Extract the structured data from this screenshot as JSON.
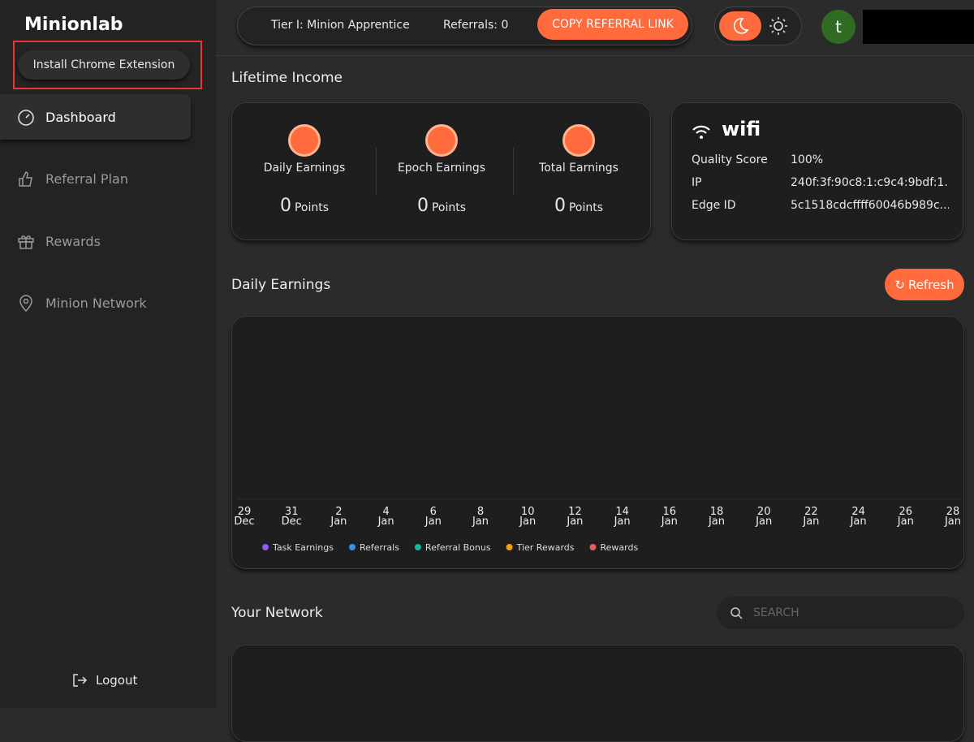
{
  "sidebar": {
    "logo": "Minionlab",
    "install_button": "Install Chrome Extension",
    "nav": [
      "Dashboard",
      "Referral Plan",
      "Rewards",
      "Minion Network"
    ],
    "logout": "Logout"
  },
  "header": {
    "tier": "Tier I: Minion Apprentice",
    "referrals": "Referrals: 0",
    "copy_button": "COPY REFERRAL LINK",
    "avatar": "t"
  },
  "lifetime_income": {
    "title": "Lifetime Income",
    "cards": [
      {
        "label": "Daily Earnings",
        "value": 0,
        "unit": "Points"
      },
      {
        "label": "Epoch Earnings",
        "value": 0,
        "unit": "Points"
      },
      {
        "label": "Total Earnings",
        "value": 0,
        "unit": "Points"
      }
    ]
  },
  "device": {
    "name": "wifi",
    "rows": [
      [
        "Quality Score",
        "100%"
      ],
      [
        "IP",
        "240f:3f:90c8:1:c9c4:9bdf:1..."
      ],
      [
        "Edge ID",
        "5c1518cdcffff60046b989c..."
      ]
    ]
  },
  "daily_earnings": {
    "title": "Daily Earnings",
    "refresh": "Refresh",
    "x_labels": [
      {
        "day": "29",
        "month": "Dec"
      },
      {
        "day": "31",
        "month": "Dec"
      },
      {
        "day": "2",
        "month": "Jan"
      },
      {
        "day": "4",
        "month": "Jan"
      },
      {
        "day": "6",
        "month": "Jan"
      },
      {
        "day": "8",
        "month": "Jan"
      },
      {
        "day": "10",
        "month": "Jan"
      },
      {
        "day": "12",
        "month": "Jan"
      },
      {
        "day": "14",
        "month": "Jan"
      },
      {
        "day": "16",
        "month": "Jan"
      },
      {
        "day": "18",
        "month": "Jan"
      },
      {
        "day": "20",
        "month": "Jan"
      },
      {
        "day": "22",
        "month": "Jan"
      },
      {
        "day": "24",
        "month": "Jan"
      },
      {
        "day": "26",
        "month": "Jan"
      },
      {
        "day": "28",
        "month": "Jan"
      }
    ],
    "legend": [
      {
        "name": "Task Earnings",
        "color": "#8b5cf6"
      },
      {
        "name": "Referrals",
        "color": "#3b8fe8"
      },
      {
        "name": "Referral Bonus",
        "color": "#14b8a6"
      },
      {
        "name": "Tier Rewards",
        "color": "#f59e0b"
      },
      {
        "name": "Rewards",
        "color": "#ef5b5b"
      }
    ]
  },
  "network": {
    "title": "Your Network",
    "search_placeholder": "SEARCH"
  }
}
